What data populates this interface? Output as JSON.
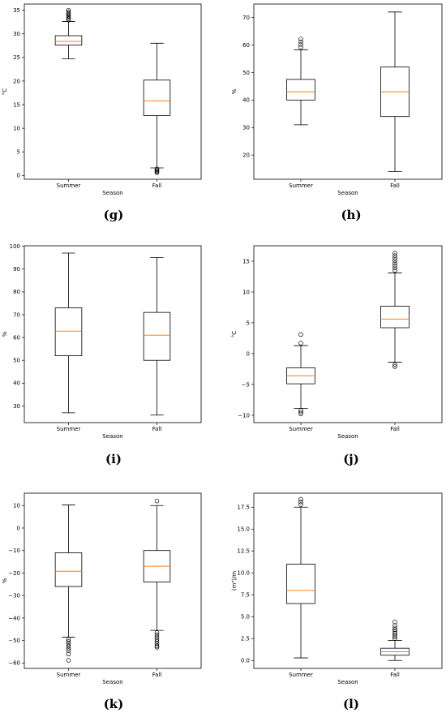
{
  "chart_data": [
    {
      "panel": "(g)",
      "type": "boxplot",
      "xlabel": "Season",
      "ylabel": "°C",
      "categories": [
        "Summer",
        "Fall"
      ],
      "ylim": [
        -0.8,
        36.3
      ],
      "yticks": [
        0,
        5,
        10,
        15,
        20,
        25,
        30,
        35
      ],
      "boxes": [
        {
          "category": "Summer",
          "whisker_low": 24.7,
          "q1": 27.6,
          "median": 28.4,
          "q3": 29.6,
          "whisker_high": 32.6,
          "outliers": [
            32.9,
            33.2,
            33.5,
            33.8,
            34.1,
            34.4,
            34.7,
            35.0
          ]
        },
        {
          "category": "Fall",
          "whisker_low": 1.6,
          "q1": 12.7,
          "median": 15.8,
          "q3": 20.2,
          "whisker_high": 28.0,
          "outliers": [
            1.4,
            1.2,
            1.0,
            0.8,
            0.6
          ]
        }
      ]
    },
    {
      "panel": "(h)",
      "type": "boxplot",
      "xlabel": "Season",
      "ylabel": "%",
      "categories": [
        "Summer",
        "Fall"
      ],
      "ylim": [
        11.2,
        74.9
      ],
      "yticks": [
        20,
        30,
        40,
        50,
        60,
        70
      ],
      "boxes": [
        {
          "category": "Summer",
          "whisker_low": 31.0,
          "q1": 40.0,
          "median": 43.0,
          "q3": 47.5,
          "whisker_high": 58.3,
          "outliers": [
            59.2,
            60.2,
            61.2,
            62.2
          ]
        },
        {
          "category": "Fall",
          "whisker_low": 14.0,
          "q1": 34.0,
          "median": 43.0,
          "q3": 52.0,
          "whisker_high": 72.0,
          "outliers": []
        }
      ]
    },
    {
      "panel": "(i)",
      "type": "boxplot",
      "xlabel": "Season",
      "ylabel": "%",
      "categories": [
        "Summer",
        "Fall"
      ],
      "ylim": [
        22.7,
        100.2
      ],
      "yticks": [
        30,
        40,
        50,
        60,
        70,
        80,
        90,
        100
      ],
      "boxes": [
        {
          "category": "Summer",
          "whisker_low": 27.0,
          "q1": 52.0,
          "median": 62.8,
          "q3": 73.0,
          "whisker_high": 97.0,
          "outliers": []
        },
        {
          "category": "Fall",
          "whisker_low": 26.0,
          "q1": 50.0,
          "median": 61.0,
          "q3": 71.0,
          "whisker_high": 95.0,
          "outliers": []
        }
      ]
    },
    {
      "panel": "(j)",
      "type": "boxplot",
      "xlabel": "Season",
      "ylabel": "°C",
      "categories": [
        "Summer",
        "Fall"
      ],
      "ylim": [
        -11.2,
        17.5
      ],
      "yticks": [
        -10,
        -5,
        0,
        5,
        10,
        15
      ],
      "boxes": [
        {
          "category": "Summer",
          "whisker_low": -8.9,
          "q1": -4.9,
          "median": -3.6,
          "q3": -2.3,
          "whisker_high": 1.3,
          "outliers": [
            1.7,
            3.1,
            -9.2,
            -9.5,
            -9.8
          ]
        },
        {
          "category": "Fall",
          "whisker_low": -1.4,
          "q1": 4.2,
          "median": 5.6,
          "q3": 7.7,
          "whisker_high": 13.1,
          "outliers": [
            13.5,
            13.9,
            14.3,
            14.7,
            15.1,
            15.5,
            15.9,
            16.3,
            -1.8,
            -2.1
          ]
        }
      ]
    },
    {
      "panel": "(k)",
      "type": "boxplot",
      "xlabel": "Season",
      "ylabel": "%",
      "categories": [
        "Summer",
        "Fall"
      ],
      "ylim": [
        -62.4,
        15.5
      ],
      "yticks": [
        -60,
        -50,
        -40,
        -30,
        -20,
        -10,
        0,
        10
      ],
      "boxes": [
        {
          "category": "Summer",
          "whisker_low": -48.5,
          "q1": -26.0,
          "median": -19.2,
          "q3": -11.0,
          "whisker_high": 10.3,
          "outliers": [
            -49.5,
            -50.5,
            -51.5,
            -52.5,
            -53.5,
            -54.5,
            -56.0,
            -58.8
          ]
        },
        {
          "category": "Fall",
          "whisker_low": -45.5,
          "q1": -24.0,
          "median": -17.0,
          "q3": -10.0,
          "whisker_high": 10.0,
          "outliers": [
            12.0,
            -46.5,
            -47.5,
            -48.5,
            -49.5,
            -50.5,
            -51.5,
            -52.5,
            -53.0
          ]
        }
      ]
    },
    {
      "panel": "(l)",
      "type": "boxplot",
      "xlabel": "Season",
      "ylabel": "(m³)/m",
      "categories": [
        "Summer",
        "Fall"
      ],
      "ylim": [
        -0.9,
        19.1
      ],
      "yticks": [
        0.0,
        2.5,
        5.0,
        7.5,
        10.0,
        12.5,
        15.0,
        17.5
      ],
      "ytick_labels": [
        "0.0",
        "2.5",
        "5.0",
        "7.5",
        "10.0",
        "12.5",
        "15.0",
        "17.5"
      ],
      "boxes": [
        {
          "category": "Summer",
          "whisker_low": 0.3,
          "q1": 6.5,
          "median": 8.0,
          "q3": 11.0,
          "whisker_high": 17.5,
          "outliers": [
            17.8,
            18.1,
            18.4
          ]
        },
        {
          "category": "Fall",
          "whisker_low": 0.0,
          "q1": 0.6,
          "median": 1.0,
          "q3": 1.4,
          "whisker_high": 2.3,
          "outliers": [
            2.5,
            2.7,
            2.9,
            3.1,
            3.3,
            3.5,
            3.7,
            4.0,
            4.4
          ]
        }
      ]
    }
  ],
  "colors": {
    "box": "#000000",
    "median": "#ff7f0e",
    "background": "#ffffff"
  }
}
